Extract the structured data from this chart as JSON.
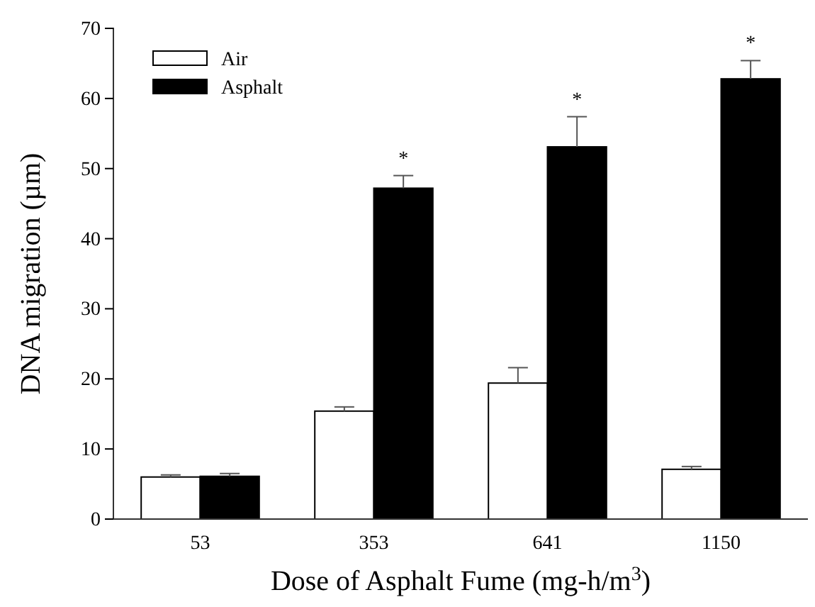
{
  "chart_data": {
    "type": "bar",
    "xlabel": "Dose of Asphalt Fume (mg-h/m$^{3}$)",
    "ylabel": "DNA migration (µm)",
    "categories": [
      "53",
      "353",
      "641",
      "1150"
    ],
    "series": [
      {
        "name": "Air",
        "color": "#ffffff",
        "values": [
          6.0,
          15.4,
          19.4,
          7.1
        ],
        "errors": [
          0.3,
          0.6,
          2.2,
          0.4
        ]
      },
      {
        "name": "Asphalt",
        "color": "#000000",
        "values": [
          6.1,
          47.2,
          53.1,
          62.8
        ],
        "errors": [
          0.4,
          1.8,
          4.3,
          2.6
        ]
      }
    ],
    "ylim": [
      0,
      70
    ],
    "yticks": [
      0,
      10,
      20,
      30,
      40,
      50,
      60,
      70
    ],
    "grid": false,
    "legend": "top left",
    "annotations": [
      {
        "text": "*",
        "x": "353",
        "y": 47.2
      },
      {
        "text": "*",
        "x": "641",
        "y": 53.1
      },
      {
        "text": "*",
        "x": "1150",
        "y": 62.8
      }
    ]
  }
}
